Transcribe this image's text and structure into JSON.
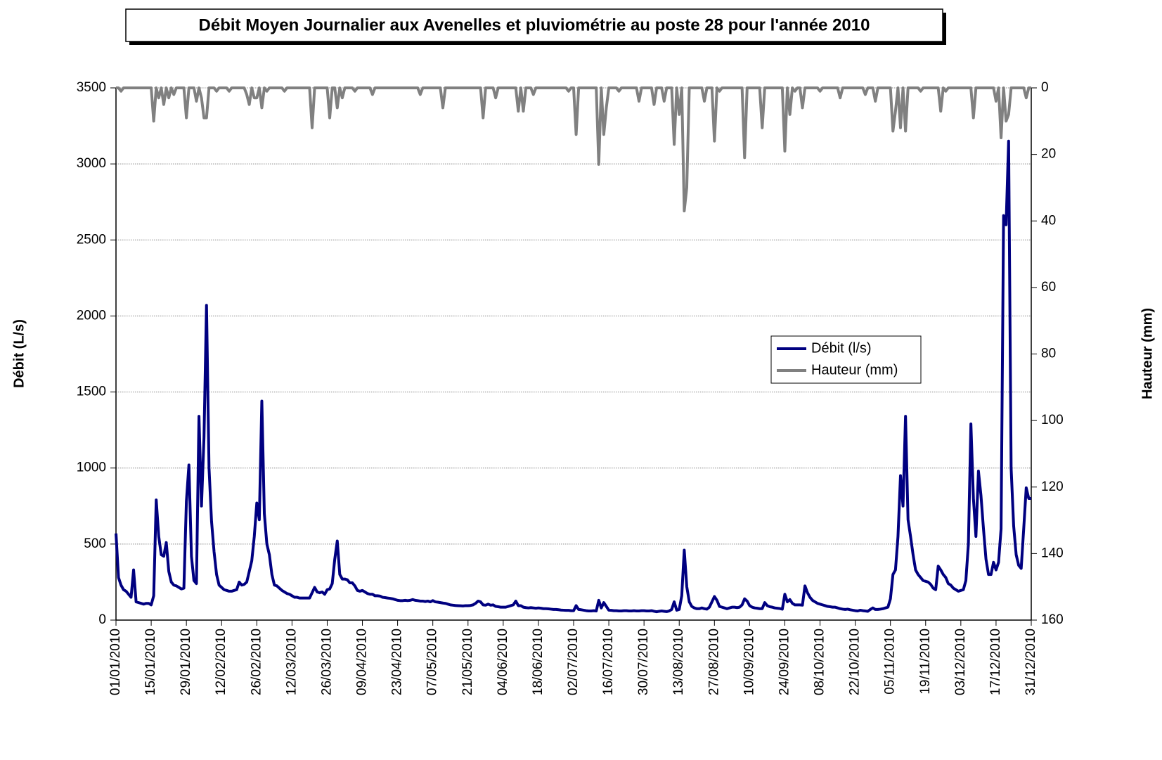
{
  "chart_data": {
    "type": "line",
    "title": "Débit Moyen Journalier aux Avenelles et pluviométrie au poste 28 pour l'année 2010",
    "y_label": "Débit (L/s)",
    "y2_label": "Hauteur (mm)",
    "ylim": [
      0,
      3500
    ],
    "yticks": [
      0,
      500,
      1000,
      1500,
      2000,
      2500,
      3000,
      3500
    ],
    "y2lim": [
      0,
      160
    ],
    "y2ticks": [
      0,
      20,
      40,
      60,
      80,
      100,
      120,
      140,
      160
    ],
    "y2_inverted": true,
    "grid": true,
    "legend": "right",
    "categories": [
      "01/01/2010",
      null,
      null,
      null,
      null,
      null,
      null,
      null,
      null,
      null,
      null,
      null,
      null,
      null,
      "15/01/2010",
      null,
      null,
      null,
      null,
      null,
      null,
      null,
      null,
      null,
      null,
      null,
      null,
      null,
      "29/01/2010",
      null,
      null,
      null,
      null,
      null,
      null,
      null,
      null,
      null,
      null,
      null,
      null,
      null,
      "12/02/2010",
      null,
      null,
      null,
      null,
      null,
      null,
      null,
      null,
      null,
      null,
      null,
      null,
      null,
      "26/02/2010",
      null,
      null,
      null,
      null,
      null,
      null,
      null,
      null,
      null,
      null,
      null,
      null,
      null,
      "12/03/2010",
      null,
      null,
      null,
      null,
      null,
      null,
      null,
      null,
      null,
      null,
      null,
      null,
      null,
      "26/03/2010",
      null,
      null,
      null,
      null,
      null,
      null,
      null,
      null,
      null,
      null,
      null,
      null,
      null,
      "09/04/2010",
      null,
      null,
      null,
      null,
      null,
      null,
      null,
      null,
      null,
      null,
      null,
      null,
      null,
      "23/04/2010",
      null,
      null,
      null,
      null,
      null,
      null,
      null,
      null,
      null,
      null,
      null,
      null,
      null,
      "07/05/2010",
      null,
      null,
      null,
      null,
      null,
      null,
      null,
      null,
      null,
      null,
      null,
      null,
      null,
      "21/05/2010",
      null,
      null,
      null,
      null,
      null,
      null,
      null,
      null,
      null,
      null,
      null,
      null,
      null,
      "04/06/2010",
      null,
      null,
      null,
      null,
      null,
      null,
      null,
      null,
      null,
      null,
      null,
      null,
      null,
      "18/06/2010",
      null,
      null,
      null,
      null,
      null,
      null,
      null,
      null,
      null,
      null,
      null,
      null,
      null,
      "02/07/2010",
      null,
      null,
      null,
      null,
      null,
      null,
      null,
      null,
      null,
      null,
      null,
      null,
      null,
      "16/07/2010",
      null,
      null,
      null,
      null,
      null,
      null,
      null,
      null,
      null,
      null,
      null,
      null,
      null,
      "30/07/2010",
      null,
      null,
      null,
      null,
      null,
      null,
      null,
      null,
      null,
      null,
      null,
      null,
      null,
      "13/08/2010",
      null,
      null,
      null,
      null,
      null,
      null,
      null,
      null,
      null,
      null,
      null,
      null,
      null,
      "27/08/2010",
      null,
      null,
      null,
      null,
      null,
      null,
      null,
      null,
      null,
      null,
      null,
      null,
      null,
      "10/09/2010",
      null,
      null,
      null,
      null,
      null,
      null,
      null,
      null,
      null,
      null,
      null,
      null,
      null,
      "24/09/2010",
      null,
      null,
      null,
      null,
      null,
      null,
      null,
      null,
      null,
      null,
      null,
      null,
      null,
      "08/10/2010",
      null,
      null,
      null,
      null,
      null,
      null,
      null,
      null,
      null,
      null,
      null,
      null,
      null,
      "22/10/2010",
      null,
      null,
      null,
      null,
      null,
      null,
      null,
      null,
      null,
      null,
      null,
      null,
      null,
      "05/11/2010",
      null,
      null,
      null,
      null,
      null,
      null,
      null,
      null,
      null,
      null,
      null,
      null,
      null,
      "19/11/2010",
      null,
      null,
      null,
      null,
      null,
      null,
      null,
      null,
      null,
      null,
      null,
      null,
      null,
      "03/12/2010",
      null,
      null,
      null,
      null,
      null,
      null,
      null,
      null,
      null,
      null,
      null,
      null,
      null,
      "17/12/2010",
      null,
      null,
      null,
      null,
      null,
      null,
      null,
      null,
      null,
      null,
      null,
      null,
      null,
      "31/12/2010"
    ],
    "series": [
      {
        "name": "Débit (l/s)",
        "color": "#000080",
        "values": [
          570,
          280,
          230,
          200,
          190,
          170,
          150,
          330,
          120,
          115,
          110,
          105,
          110,
          110,
          100,
          160,
          790,
          550,
          430,
          420,
          510,
          320,
          250,
          230,
          225,
          215,
          205,
          210,
          780,
          1020,
          420,
          260,
          240,
          1340,
          750,
          1200,
          2070,
          1000,
          650,
          450,
          300,
          230,
          215,
          200,
          195,
          190,
          190,
          195,
          200,
          250,
          230,
          235,
          250,
          320,
          390,
          550,
          770,
          660,
          1440,
          700,
          500,
          430,
          300,
          230,
          225,
          210,
          195,
          185,
          175,
          170,
          160,
          150,
          150,
          145,
          145,
          145,
          145,
          145,
          180,
          215,
          185,
          180,
          185,
          170,
          200,
          205,
          240,
          400,
          520,
          300,
          270,
          270,
          265,
          245,
          245,
          225,
          195,
          190,
          195,
          185,
          175,
          170,
          170,
          160,
          160,
          158,
          150,
          148,
          145,
          143,
          140,
          135,
          130,
          128,
          128,
          130,
          128,
          130,
          135,
          130,
          128,
          125,
          125,
          122,
          125,
          120,
          128,
          120,
          118,
          115,
          112,
          110,
          105,
          100,
          98,
          96,
          95,
          94,
          93,
          95,
          95,
          96,
          100,
          110,
          125,
          120,
          100,
          98,
          105,
          98,
          100,
          90,
          88,
          85,
          85,
          85,
          90,
          95,
          100,
          125,
          95,
          95,
          85,
          82,
          80,
          82,
          80,
          78,
          80,
          78,
          75,
          75,
          74,
          72,
          70,
          70,
          68,
          66,
          65,
          64,
          64,
          62,
          62,
          95,
          70,
          68,
          65,
          62,
          60,
          60,
          62,
          60,
          130,
          80,
          115,
          90,
          65,
          64,
          62,
          62,
          60,
          60,
          62,
          62,
          60,
          60,
          62,
          60,
          60,
          62,
          62,
          60,
          60,
          62,
          58,
          55,
          58,
          60,
          58,
          56,
          60,
          70,
          120,
          65,
          70,
          160,
          460,
          220,
          120,
          90,
          80,
          75,
          75,
          80,
          75,
          72,
          85,
          120,
          155,
          130,
          90,
          85,
          80,
          75,
          80,
          85,
          85,
          82,
          85,
          100,
          140,
          125,
          95,
          85,
          80,
          78,
          75,
          75,
          115,
          95,
          88,
          85,
          80,
          78,
          76,
          72,
          170,
          120,
          135,
          110,
          100,
          100,
          100,
          98,
          225,
          180,
          150,
          130,
          120,
          110,
          105,
          100,
          95,
          90,
          88,
          85,
          85,
          80,
          75,
          72,
          70,
          72,
          68,
          65,
          62,
          60,
          65,
          62,
          60,
          58,
          70,
          80,
          70,
          70,
          72,
          75,
          80,
          85,
          140,
          300,
          330,
          550,
          950,
          750,
          1340,
          660,
          550,
          430,
          330,
          300,
          280,
          260,
          255,
          250,
          235,
          210,
          200,
          355,
          330,
          300,
          280,
          240,
          230,
          210,
          200,
          190,
          195,
          200,
          260,
          500,
          1290,
          800,
          550,
          980,
          820,
          600,
          400,
          300,
          300,
          380,
          330,
          380,
          600,
          2660,
          2600,
          3150,
          1000,
          620,
          430,
          360,
          340,
          600,
          870,
          800,
          800
        ]
      },
      {
        "name": "Hauteur (mm)",
        "color": "#808080",
        "axis": "y2",
        "values": [
          0,
          0,
          1,
          0,
          0,
          0,
          0,
          0,
          0,
          0,
          0,
          0,
          0,
          0,
          0,
          10,
          0,
          3,
          0,
          5,
          0,
          3,
          0,
          2,
          0,
          0,
          0,
          0,
          9,
          0,
          0,
          0,
          4,
          0,
          3,
          9,
          9,
          0,
          0,
          0,
          1,
          0,
          0,
          0,
          0,
          1,
          0,
          0,
          0,
          0,
          0,
          0,
          2,
          5,
          0,
          3,
          3,
          0,
          6,
          0,
          1,
          0,
          0,
          0,
          0,
          0,
          0,
          1,
          0,
          0,
          0,
          0,
          0,
          0,
          0,
          0,
          0,
          0,
          12,
          0,
          0,
          0,
          0,
          0,
          0,
          9,
          0,
          0,
          6,
          0,
          3,
          0,
          0,
          0,
          0,
          1,
          0,
          0,
          0,
          0,
          0,
          0,
          2,
          0,
          0,
          0,
          0,
          0,
          0,
          0,
          0,
          0,
          0,
          0,
          0,
          0,
          0,
          0,
          0,
          0,
          0,
          2,
          0,
          0,
          0,
          0,
          0,
          0,
          0,
          0,
          6,
          0,
          0,
          0,
          0,
          0,
          0,
          0,
          0,
          0,
          0,
          0,
          0,
          0,
          0,
          0,
          9,
          0,
          0,
          0,
          0,
          3,
          0,
          0,
          0,
          0,
          0,
          0,
          0,
          0,
          7,
          0,
          7,
          0,
          0,
          0,
          2,
          0,
          0,
          0,
          0,
          0,
          0,
          0,
          0,
          0,
          0,
          0,
          0,
          0,
          1,
          0,
          0,
          14,
          0,
          0,
          0,
          0,
          0,
          0,
          0,
          0,
          23,
          0,
          14,
          6,
          0,
          0,
          0,
          0,
          1,
          0,
          0,
          0,
          0,
          0,
          0,
          0,
          4,
          0,
          0,
          0,
          0,
          0,
          5,
          0,
          0,
          0,
          4,
          0,
          0,
          0,
          17,
          0,
          8,
          0,
          37,
          30,
          0,
          0,
          0,
          0,
          0,
          0,
          4,
          0,
          0,
          0,
          16,
          0,
          1,
          0,
          0,
          0,
          0,
          0,
          0,
          0,
          0,
          0,
          21,
          0,
          0,
          0,
          0,
          0,
          0,
          12,
          0,
          0,
          0,
          0,
          0,
          0,
          0,
          0,
          19,
          0,
          8,
          0,
          1,
          0,
          0,
          6,
          0,
          0,
          0,
          0,
          0,
          0,
          1,
          0,
          0,
          0,
          0,
          0,
          0,
          0,
          3,
          0,
          0,
          0,
          0,
          0,
          0,
          0,
          0,
          0,
          2,
          0,
          0,
          0,
          4,
          0,
          0,
          0,
          0,
          0,
          0,
          13,
          7,
          0,
          12,
          0,
          13,
          0,
          0,
          0,
          0,
          0,
          1,
          0,
          0,
          0,
          0,
          0,
          0,
          0,
          7,
          0,
          1,
          0,
          0,
          0,
          0,
          0,
          0,
          0,
          0,
          0,
          0,
          9,
          0,
          0,
          0,
          0,
          0,
          0,
          0,
          0,
          4,
          0,
          15,
          0,
          10,
          8,
          0,
          0,
          0,
          0,
          0,
          0,
          3,
          0,
          0
        ]
      }
    ]
  }
}
